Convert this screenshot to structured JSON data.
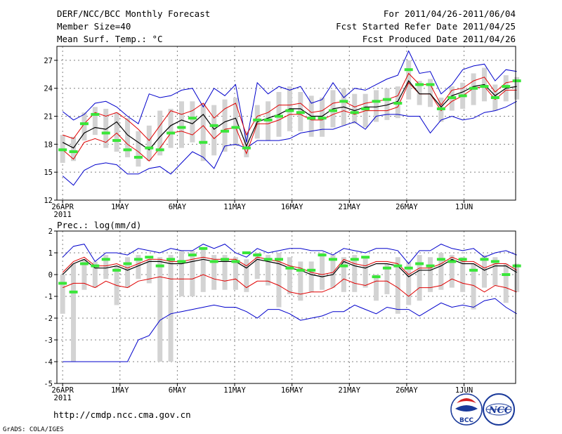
{
  "header": {
    "title": "DERF/NCC/BCC Monthly Forecast",
    "member_size": "Member Size=40",
    "variable": "Mean Surf. Temp.: °C",
    "period": "For 2011/04/26-2011/06/04",
    "started": "Fcst Started Refer Date 2011/04/25",
    "produced": "Fcst Produced Date 2011/04/26"
  },
  "footer": {
    "url": "http://cmdp.ncc.cma.gov.cn",
    "grads": "GrADS: COLA/IGES",
    "logo_bcc": "BCC",
    "logo_ncc": "NCC"
  },
  "colors": {
    "box": "#d3d3d3",
    "median": "#39e639",
    "mean": "#000000",
    "inner": "#e00000",
    "outer": "#0000cc",
    "grid": "#808080"
  },
  "chart_data": [
    {
      "type": "line",
      "title": "Mean Surf. Temp.: °C",
      "ylim": [
        12,
        28.5
      ],
      "yticks": [
        12,
        15,
        18,
        21,
        24,
        27
      ],
      "xlim": [
        0.5,
        40.5
      ],
      "xticks": [
        {
          "day": 1,
          "label": "26APR"
        },
        {
          "day": 6,
          "label": "1MAY"
        },
        {
          "day": 11,
          "label": "6MAY"
        },
        {
          "day": 16,
          "label": "11MAY"
        },
        {
          "day": 21,
          "label": "16MAY"
        },
        {
          "day": 26,
          "label": "21MAY"
        },
        {
          "day": 31,
          "label": "26MAY"
        },
        {
          "day": 36,
          "label": "1JUN"
        }
      ],
      "year_label": "2011",
      "series": [
        {
          "name": "ensemble mean",
          "values": [
            18.2,
            17.6,
            19.2,
            19.8,
            19.6,
            20.4,
            19.0,
            18.2,
            17.4,
            18.8,
            20.0,
            20.6,
            20.2,
            21.2,
            19.6,
            20.4,
            20.8,
            17.8,
            20.4,
            20.8,
            21.2,
            21.8,
            21.8,
            21.0,
            21.0,
            21.8,
            22.0,
            21.6,
            22.0,
            22.0,
            22.2,
            22.6,
            24.8,
            23.4,
            23.4,
            22.0,
            23.2,
            23.6,
            24.2,
            24.4,
            23.2,
            24.0,
            24.2
          ]
        },
        {
          "name": "upper member",
          "values": [
            19.0,
            18.6,
            20.2,
            21.4,
            21.0,
            21.4,
            20.6,
            19.6,
            18.4,
            20.0,
            21.6,
            21.2,
            21.6,
            22.4,
            20.8,
            21.8,
            22.4,
            19.0,
            21.0,
            21.4,
            22.2,
            22.2,
            22.4,
            21.4,
            21.6,
            22.4,
            22.6,
            22.0,
            22.4,
            22.6,
            22.8,
            23.2,
            25.6,
            24.4,
            24.4,
            22.2,
            23.8,
            24.0,
            24.8,
            25.2,
            23.6,
            24.6,
            24.8
          ]
        },
        {
          "name": "lower member",
          "values": [
            17.4,
            16.4,
            18.2,
            18.6,
            18.2,
            19.2,
            18.0,
            17.2,
            16.2,
            17.6,
            19.2,
            19.4,
            19.0,
            20.0,
            18.6,
            19.6,
            19.8,
            17.0,
            20.2,
            20.2,
            20.6,
            21.2,
            21.2,
            20.6,
            20.6,
            21.2,
            21.6,
            21.2,
            21.6,
            21.6,
            21.6,
            22.0,
            24.6,
            23.4,
            23.4,
            21.6,
            22.6,
            23.2,
            24.0,
            24.2,
            22.8,
            23.8,
            23.8
          ]
        },
        {
          "name": "maximum",
          "values": [
            21.5,
            20.6,
            21.2,
            22.4,
            22.6,
            22.0,
            21.0,
            20.2,
            23.4,
            23.0,
            23.2,
            23.8,
            24.0,
            22.0,
            24.0,
            23.2,
            24.4,
            18.2,
            24.6,
            23.4,
            24.2,
            23.8,
            24.2,
            22.4,
            22.8,
            24.6,
            23.0,
            24.0,
            23.8,
            24.4,
            25.0,
            25.4,
            28.0,
            25.6,
            25.8,
            23.4,
            24.4,
            26.0,
            26.4,
            26.6,
            24.8,
            26.0,
            25.8
          ]
        },
        {
          "name": "minimum",
          "values": [
            14.6,
            13.6,
            15.2,
            15.8,
            16.0,
            15.8,
            14.8,
            14.8,
            15.4,
            15.6,
            14.8,
            16.0,
            17.2,
            16.6,
            15.4,
            17.8,
            18.0,
            17.6,
            18.4,
            18.4,
            18.4,
            18.6,
            19.2,
            19.4,
            19.6,
            19.6,
            20.0,
            20.4,
            19.6,
            21.0,
            21.2,
            21.2,
            21.0,
            21.0,
            19.2,
            20.6,
            21.0,
            20.6,
            20.8,
            21.4,
            21.6,
            22.0,
            22.6
          ]
        },
        {
          "name": "median",
          "values": [
            17.4,
            17.2,
            20.2,
            21.2,
            19.2,
            18.4,
            17.4,
            16.6,
            17.6,
            17.4,
            19.2,
            19.8,
            20.8,
            18.2,
            20.0,
            19.4,
            19.8,
            17.6,
            20.6,
            20.6,
            21.0,
            21.6,
            21.4,
            20.8,
            20.8,
            21.6,
            22.6,
            21.4,
            21.8,
            22.6,
            22.8,
            22.4,
            26.0,
            24.4,
            24.4,
            21.8,
            23.0,
            23.2,
            24.0,
            24.2,
            23.0,
            24.2,
            24.8
          ]
        }
      ],
      "box_ranges": [
        [
          16.0,
          19.0
        ],
        [
          16.2,
          18.8
        ],
        [
          18.4,
          21.4
        ],
        [
          19.0,
          22.0
        ],
        [
          17.6,
          21.8
        ],
        [
          17.2,
          21.4
        ],
        [
          16.6,
          20.8
        ],
        [
          15.6,
          19.4
        ],
        [
          16.2,
          20.0
        ],
        [
          16.8,
          21.6
        ],
        [
          17.6,
          21.8
        ],
        [
          17.6,
          22.6
        ],
        [
          18.2,
          22.6
        ],
        [
          16.2,
          22.4
        ],
        [
          16.8,
          22.2
        ],
        [
          17.2,
          22.8
        ],
        [
          17.8,
          23.0
        ],
        [
          16.6,
          19.4
        ],
        [
          18.6,
          22.2
        ],
        [
          18.4,
          22.6
        ],
        [
          18.8,
          23.6
        ],
        [
          19.4,
          24.2
        ],
        [
          19.4,
          23.6
        ],
        [
          18.8,
          23.2
        ],
        [
          18.8,
          23.0
        ],
        [
          19.8,
          23.8
        ],
        [
          20.0,
          24.0
        ],
        [
          20.2,
          23.4
        ],
        [
          19.8,
          23.4
        ],
        [
          20.4,
          23.8
        ],
        [
          20.6,
          24.0
        ],
        [
          20.8,
          24.2
        ],
        [
          22.8,
          27.0
        ],
        [
          22.2,
          24.8
        ],
        [
          22.0,
          25.0
        ],
        [
          20.4,
          23.0
        ],
        [
          21.6,
          24.2
        ],
        [
          21.8,
          24.6
        ],
        [
          22.2,
          25.6
        ],
        [
          22.6,
          26.2
        ],
        [
          21.6,
          24.4
        ],
        [
          22.6,
          25.4
        ],
        [
          22.8,
          25.2
        ]
      ]
    },
    {
      "type": "line",
      "title": "Prec.: log(mm/d)",
      "ylim": [
        -5,
        2
      ],
      "yticks": [
        -5,
        -4,
        -3,
        -2,
        -1,
        0,
        1,
        2
      ],
      "xlim": [
        0.5,
        40.5
      ],
      "xticks": [
        {
          "day": 1,
          "label": "26APR"
        },
        {
          "day": 6,
          "label": "1MAY"
        },
        {
          "day": 11,
          "label": "6MAY"
        },
        {
          "day": 16,
          "label": "11MAY"
        },
        {
          "day": 21,
          "label": "16MAY"
        },
        {
          "day": 26,
          "label": "21MAY"
        },
        {
          "day": 31,
          "label": "26MAY"
        },
        {
          "day": 36,
          "label": "1JUN"
        }
      ],
      "year_label": "2011",
      "series": [
        {
          "name": "ensemble mean",
          "values": [
            0.0,
            0.5,
            0.7,
            0.3,
            0.3,
            0.4,
            0.2,
            0.4,
            0.6,
            0.6,
            0.5,
            0.5,
            0.6,
            0.7,
            0.6,
            0.6,
            0.6,
            0.3,
            0.7,
            0.6,
            0.5,
            0.3,
            0.2,
            0.0,
            -0.1,
            0.0,
            0.6,
            0.4,
            0.3,
            0.5,
            0.5,
            0.4,
            -0.1,
            0.2,
            0.2,
            0.4,
            0.7,
            0.5,
            0.5,
            0.2,
            0.4,
            0.4,
            0.1
          ]
        },
        {
          "name": "upper member",
          "values": [
            0.1,
            0.6,
            0.8,
            0.4,
            0.4,
            0.5,
            0.3,
            0.5,
            0.7,
            0.7,
            0.6,
            0.6,
            0.7,
            0.8,
            0.7,
            0.7,
            0.7,
            0.4,
            0.8,
            0.7,
            0.6,
            0.4,
            0.3,
            0.1,
            0.0,
            0.1,
            0.7,
            0.5,
            0.4,
            0.6,
            0.6,
            0.5,
            0.0,
            0.3,
            0.3,
            0.5,
            0.8,
            0.6,
            0.6,
            0.3,
            0.5,
            0.5,
            0.2
          ]
        },
        {
          "name": "lower member",
          "values": [
            -0.6,
            -0.4,
            -0.4,
            -0.6,
            -0.3,
            -0.5,
            -0.6,
            -0.3,
            -0.2,
            -0.1,
            -0.2,
            -0.2,
            -0.2,
            0.0,
            -0.2,
            -0.3,
            -0.2,
            -0.6,
            -0.3,
            -0.3,
            -0.5,
            -0.8,
            -0.9,
            -0.8,
            -0.8,
            -0.6,
            -0.2,
            -0.4,
            -0.5,
            -0.3,
            -0.3,
            -0.6,
            -1.0,
            -0.6,
            -0.6,
            -0.5,
            -0.2,
            -0.4,
            -0.5,
            -0.8,
            -0.5,
            -0.6,
            -0.8
          ]
        },
        {
          "name": "maximum",
          "values": [
            0.8,
            1.3,
            1.4,
            0.6,
            1.0,
            1.0,
            0.9,
            1.2,
            1.1,
            1.0,
            1.2,
            1.1,
            1.1,
            1.4,
            1.2,
            1.4,
            1.0,
            0.8,
            1.2,
            1.0,
            1.1,
            1.2,
            1.2,
            1.1,
            1.1,
            0.9,
            1.2,
            1.1,
            1.0,
            1.2,
            1.2,
            1.1,
            0.5,
            1.1,
            1.1,
            1.4,
            1.2,
            1.1,
            1.2,
            0.8,
            1.0,
            1.1,
            0.9
          ]
        },
        {
          "name": "minimum",
          "values": [
            -4.0,
            -4.0,
            -4.0,
            -4.0,
            -4.0,
            -4.0,
            -4.0,
            -3.0,
            -2.8,
            -2.1,
            -1.8,
            -1.7,
            -1.6,
            -1.5,
            -1.4,
            -1.5,
            -1.5,
            -1.7,
            -2.0,
            -1.6,
            -1.6,
            -1.8,
            -2.1,
            -2.0,
            -1.9,
            -1.7,
            -1.7,
            -1.4,
            -1.6,
            -1.8,
            -1.5,
            -1.6,
            -1.6,
            -1.9,
            -1.6,
            -1.3,
            -1.5,
            -1.4,
            -1.5,
            -1.2,
            -1.1,
            -1.5,
            -1.8
          ]
        },
        {
          "name": "median",
          "values": [
            -0.4,
            -0.8,
            0.5,
            0.4,
            0.7,
            0.2,
            0.5,
            0.7,
            0.8,
            0.4,
            0.7,
            0.6,
            0.9,
            1.2,
            0.6,
            0.7,
            0.6,
            1.0,
            0.9,
            0.7,
            0.7,
            0.3,
            0.2,
            0.2,
            0.9,
            0.7,
            0.4,
            0.7,
            0.8,
            -0.1,
            0.3,
            0.4,
            0.3,
            0.5,
            0.4,
            0.7,
            0.6,
            0.7,
            0.2,
            0.7,
            0.6,
            0.0,
            0.4
          ]
        },
        {
          "name": "box_low_placeholder",
          "values": []
        }
      ],
      "box_ranges": [
        [
          -1.8,
          0.0
        ],
        [
          -4.0,
          0.5
        ],
        [
          -0.7,
          0.7
        ],
        [
          -0.6,
          0.6
        ],
        [
          -0.2,
          0.9
        ],
        [
          -1.4,
          0.4
        ],
        [
          -0.6,
          0.8
        ],
        [
          -0.2,
          0.9
        ],
        [
          -0.4,
          0.7
        ],
        [
          -4.0,
          0.8
        ],
        [
          -4.0,
          0.9
        ],
        [
          -1.0,
          1.1
        ],
        [
          -1.0,
          1.1
        ],
        [
          -0.8,
          1.2
        ],
        [
          -0.7,
          0.9
        ],
        [
          -0.7,
          0.9
        ],
        [
          -0.7,
          0.8
        ],
        [
          -0.8,
          0.7
        ],
        [
          -0.2,
          1.0
        ],
        [
          -0.5,
          0.9
        ],
        [
          -1.5,
          1.0
        ],
        [
          -0.9,
          0.8
        ],
        [
          -1.2,
          0.6
        ],
        [
          -0.8,
          0.6
        ],
        [
          -0.7,
          1.0
        ],
        [
          -0.6,
          0.9
        ],
        [
          -0.8,
          0.8
        ],
        [
          -0.8,
          0.9
        ],
        [
          -0.6,
          0.8
        ],
        [
          -1.2,
          0.0
        ],
        [
          -0.9,
          0.5
        ],
        [
          -1.8,
          0.8
        ],
        [
          -1.4,
          0.6
        ],
        [
          -1.2,
          0.9
        ],
        [
          -0.8,
          0.8
        ],
        [
          -0.7,
          1.0
        ],
        [
          -0.6,
          0.9
        ],
        [
          -0.8,
          0.8
        ],
        [
          -1.6,
          0.5
        ],
        [
          -0.6,
          0.9
        ],
        [
          -0.5,
          0.8
        ],
        [
          -1.3,
          0.5
        ],
        [
          -0.8,
          0.5
        ]
      ]
    }
  ]
}
